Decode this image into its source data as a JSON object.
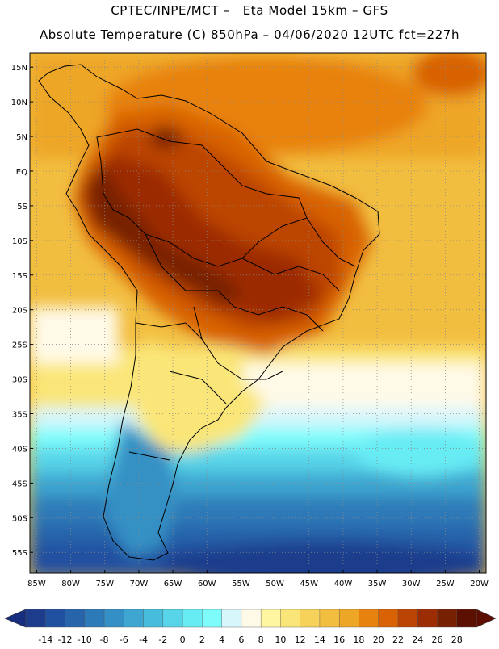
{
  "title": {
    "line1": "CPTEC/INPE/MCT –   Eta Model 15km – GFS",
    "line2": "Absolute Temperature (C) 850hPa – 04/06/2020 12UTC fct=227h"
  },
  "map": {
    "projection": "lat-lon",
    "lon_range": [
      -86,
      -19
    ],
    "lat_range": [
      -58,
      17
    ],
    "grid": "dotted",
    "lat_labels": [
      "15N",
      "10N",
      "5N",
      "EQ",
      "5S",
      "10S",
      "15S",
      "20S",
      "25S",
      "30S",
      "35S",
      "40S",
      "45S",
      "50S",
      "55S"
    ],
    "lat_values": [
      15,
      10,
      5,
      0,
      -5,
      -10,
      -15,
      -20,
      -25,
      -30,
      -35,
      -40,
      -45,
      -50,
      -55
    ],
    "lon_labels": [
      "85W",
      "80W",
      "75W",
      "70W",
      "65W",
      "60W",
      "55W",
      "50W",
      "45W",
      "40W",
      "35W",
      "30W",
      "25W",
      "20W"
    ],
    "lon_values": [
      -85,
      -80,
      -75,
      -70,
      -65,
      -60,
      -55,
      -50,
      -45,
      -40,
      -35,
      -30,
      -25,
      -20
    ]
  },
  "colorbar": {
    "labels": [
      "-14",
      "-12",
      "-10",
      "-8",
      "-6",
      "-4",
      "-2",
      "0",
      "2",
      "4",
      "6",
      "8",
      "10",
      "12",
      "14",
      "16",
      "18",
      "20",
      "22",
      "24",
      "26",
      "28"
    ],
    "colors": [
      "#1e3c8c",
      "#2050a0",
      "#2864aa",
      "#2d7ab8",
      "#3490c4",
      "#3ea6d0",
      "#48bcdc",
      "#58d4e8",
      "#68ecf4",
      "#7efcfc",
      "#d6f6fc",
      "#fffae8",
      "#fef6a0",
      "#fae678",
      "#f6d25a",
      "#f2be40",
      "#eea626",
      "#e8820e",
      "#d86204",
      "#bc4402",
      "#9c2c02",
      "#782002",
      "#5c1002"
    ],
    "under_color": "#172e7e",
    "over_color": "#5c0e02"
  }
}
